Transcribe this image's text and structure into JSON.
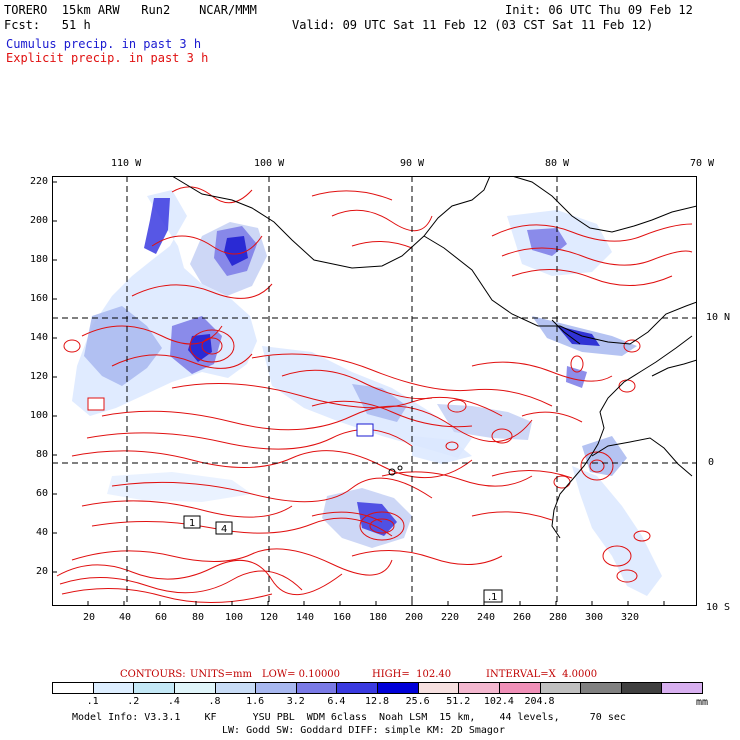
{
  "header": {
    "line1_left": "TORERO  15km ARW   Run2    NCAR/MMM",
    "line1_right": "Init: 06 UTC Thu 09 Feb 12",
    "line2_left": "Fcst:   51 h",
    "line2_right": "Valid: 09 UTC Sat 11 Feb 12 (03 CST Sat 11 Feb 12)",
    "legend_blue": "Cumulus precip. in past 3 h",
    "legend_red": "Explicit precip. in past 3 h"
  },
  "colors": {
    "cumulus": "#1a1ad0",
    "explicit": "#e01010",
    "coast": "#000000"
  },
  "axes": {
    "top_lon": [
      "110 W",
      "100 W",
      "90 W",
      "80 W",
      "70 W"
    ],
    "right_lat": [
      "10 N",
      "0",
      "10 S"
    ],
    "y_ticks": [
      "220",
      "200",
      "180",
      "160",
      "140",
      "120",
      "100",
      "80",
      "60",
      "40",
      "20"
    ],
    "x_ticks": [
      "20",
      "40",
      "60",
      "80",
      "100",
      "120",
      "140",
      "160",
      "180",
      "200",
      "220",
      "240",
      "260",
      "280",
      "300",
      "320"
    ]
  },
  "map_labels": {
    "box_1": "1",
    "box_4": "4",
    "box_01": ".1"
  },
  "contours": {
    "label": "CONTOURS:",
    "units": "UNITS=mm",
    "low": "LOW= 0.10000",
    "high": "HIGH=  102.40",
    "interval": "INTERVAL=X  4.0000"
  },
  "colorbar": {
    "colors": [
      "#ffffff",
      "#ddeeff",
      "#c4e8f6",
      "#e0f5fa",
      "#c8dcf6",
      "#a8b8f0",
      "#7a7ae6",
      "#3a3ae0",
      "#0000d8",
      "#f6e0e0",
      "#f4b8d0",
      "#f090b8",
      "#c0c0c0",
      "#808080",
      "#404040",
      "#d8b0f0"
    ],
    "labels": [
      ".1",
      ".2",
      ".4",
      ".8",
      "1.6",
      "3.2",
      "6.4",
      "12.8",
      "25.6",
      "51.2",
      "102.4",
      "204.8"
    ],
    "unit": "mm"
  },
  "footer": {
    "line1": "Model Info: V3.3.1    KF      YSU PBL  WDM 6class  Noah LSM  15 km,    44 levels,     70 sec",
    "line2": "LW: Godd SW: Goddard DIFF: simple KM: 2D Smagor"
  }
}
